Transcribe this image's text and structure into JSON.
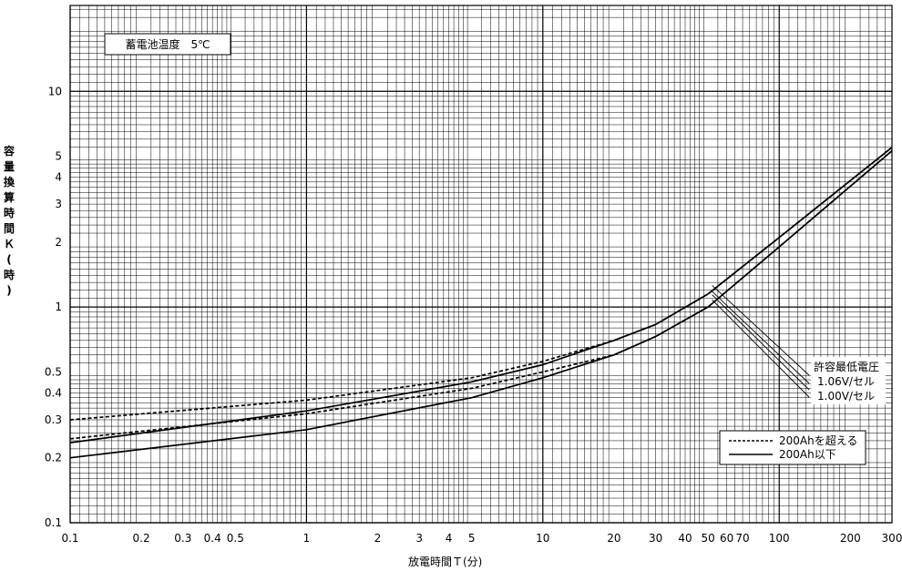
{
  "chart_data": {
    "type": "line",
    "x_scale": "log",
    "y_scale": "log",
    "xlim": [
      0.1,
      300
    ],
    "ylim": [
      0.1,
      25
    ],
    "xlabel": "放電時間Ｔ(分)",
    "ylabel": "容量換算時間Ｋ(時)",
    "x_tick_labels": [
      {
        "v": 0.1,
        "t": "0.1"
      },
      {
        "v": 0.2,
        "t": "0.2"
      },
      {
        "v": 0.3,
        "t": "0.3"
      },
      {
        "v": 0.4,
        "t": "0.4"
      },
      {
        "v": 0.5,
        "t": "0.5"
      },
      {
        "v": 1,
        "t": "1"
      },
      {
        "v": 2,
        "t": "2"
      },
      {
        "v": 3,
        "t": "3"
      },
      {
        "v": 4,
        "t": "4"
      },
      {
        "v": 5,
        "t": "5"
      },
      {
        "v": 10,
        "t": "10"
      },
      {
        "v": 20,
        "t": "20"
      },
      {
        "v": 30,
        "t": "30"
      },
      {
        "v": 40,
        "t": "40"
      },
      {
        "v": 50,
        "t": "50"
      },
      {
        "v": 60,
        "t": "60"
      },
      {
        "v": 70,
        "t": "70"
      },
      {
        "v": 100,
        "t": "100"
      },
      {
        "v": 200,
        "t": "200"
      },
      {
        "v": 300,
        "t": "300"
      }
    ],
    "y_tick_labels": [
      {
        "v": 0.1,
        "t": "0.1"
      },
      {
        "v": 0.2,
        "t": "0.2"
      },
      {
        "v": 0.3,
        "t": "0.3"
      },
      {
        "v": 0.4,
        "t": "0.4"
      },
      {
        "v": 0.5,
        "t": "0.5"
      },
      {
        "v": 1,
        "t": "1"
      },
      {
        "v": 2,
        "t": "2"
      },
      {
        "v": 3,
        "t": "3"
      },
      {
        "v": 4,
        "t": "4"
      },
      {
        "v": 5,
        "t": "5"
      },
      {
        "v": 10,
        "t": "10"
      }
    ],
    "annotation_box": "蓄電池温度　5℃",
    "voltage_labels": [
      "許容最低電圧",
      "1.06V/セル",
      "1.00V/セル"
    ],
    "legend": {
      "placement": "bottom-right",
      "entries": [
        {
          "label": "200Ahを超える",
          "style": "dashed"
        },
        {
          "label": "200Ah以下",
          "style": "solid"
        }
      ]
    },
    "grid": true,
    "series": [
      {
        "style": "dashed",
        "x": [
          0.1,
          1,
          5,
          10,
          20,
          30,
          50,
          100,
          300
        ],
        "y": [
          0.3,
          0.37,
          0.47,
          0.56,
          0.7,
          0.83,
          1.15,
          2.1,
          5.5
        ]
      },
      {
        "style": "dashed",
        "x": [
          0.1,
          1,
          5,
          10,
          20,
          30,
          50,
          100,
          300
        ],
        "y": [
          0.245,
          0.32,
          0.42,
          0.5,
          0.6,
          0.73,
          1.0,
          1.9,
          5.3
        ]
      },
      {
        "style": "solid",
        "x": [
          0.1,
          1,
          5,
          10,
          20,
          30,
          50,
          100,
          300
        ],
        "y": [
          0.235,
          0.33,
          0.45,
          0.54,
          0.7,
          0.83,
          1.15,
          2.1,
          5.5
        ]
      },
      {
        "style": "solid",
        "x": [
          0.1,
          1,
          5,
          10,
          20,
          30,
          50,
          100,
          300
        ],
        "y": [
          0.2,
          0.27,
          0.38,
          0.47,
          0.6,
          0.73,
          1.0,
          1.9,
          5.3
        ]
      }
    ]
  }
}
